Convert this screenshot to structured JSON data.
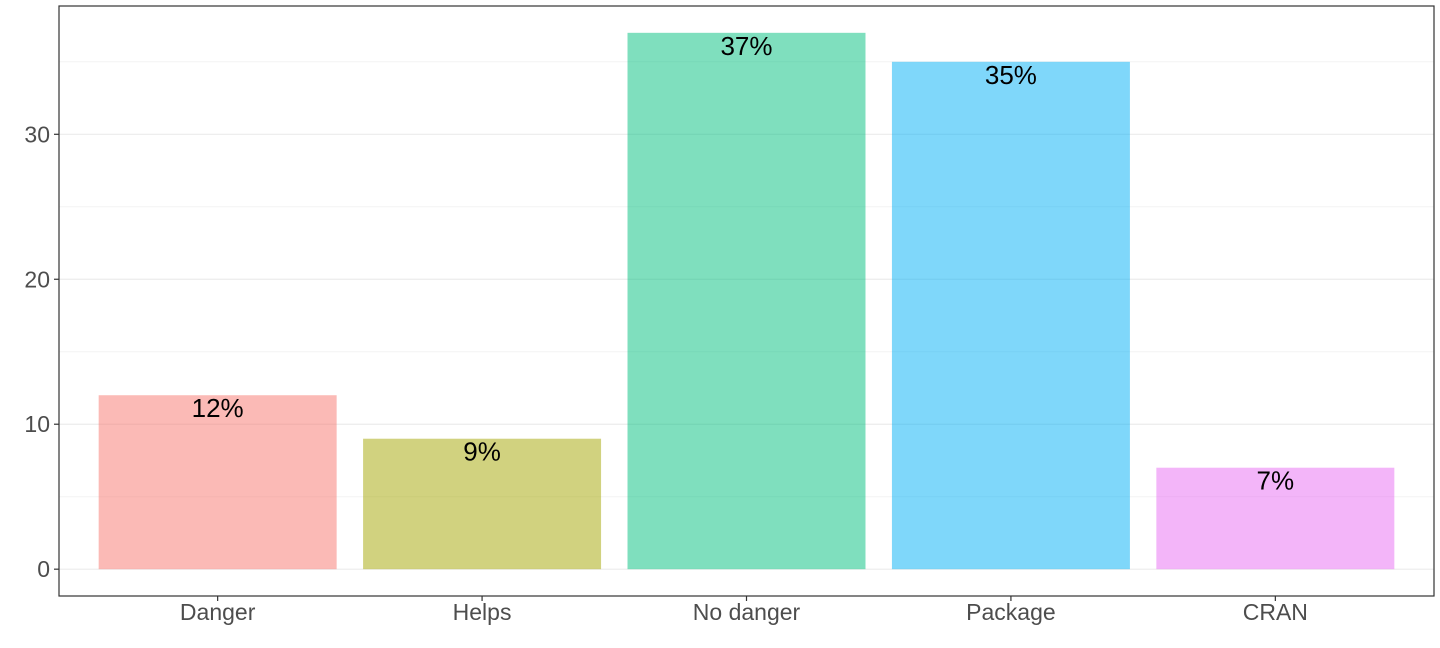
{
  "chart_data": {
    "type": "bar",
    "title": "",
    "xlabel": "",
    "ylabel": "",
    "categories": [
      "Danger",
      "Helps",
      "No danger",
      "Package",
      "CRAN"
    ],
    "values": [
      12,
      9,
      37,
      35,
      7
    ],
    "labels": [
      "12%",
      "9%",
      "37%",
      "35%",
      "7%"
    ],
    "colors": [
      "#F8766D",
      "#A3A500",
      "#00BF7D",
      "#00B0F6",
      "#E76BF3"
    ],
    "bar_opacity": 0.5,
    "ylim": [
      -1.85,
      38.85
    ],
    "yticks": [
      0,
      10,
      20,
      30
    ],
    "ytick_labels": [
      "0",
      "10",
      "20",
      "30"
    ],
    "grid": true,
    "legend": "none"
  }
}
